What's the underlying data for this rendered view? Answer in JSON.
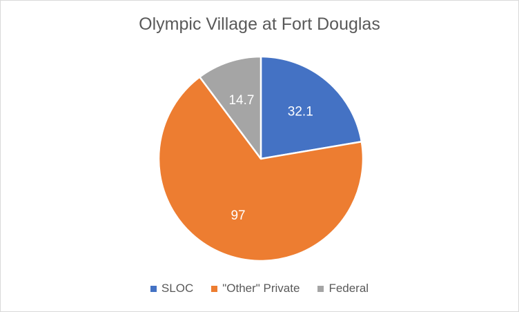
{
  "chart_data": {
    "type": "pie",
    "title": "Olympic Village at Fort Douglas",
    "categories": [
      "SLOC",
      "\"Other\" Private",
      "Federal"
    ],
    "values": [
      32.1,
      97,
      14.7
    ],
    "data_labels": [
      "32.1",
      "97",
      "14.7"
    ],
    "colors": [
      "#4472c4",
      "#ed7d31",
      "#a5a5a5"
    ],
    "legend_position": "bottom",
    "start_angle": "12 o'clock, clockwise"
  }
}
